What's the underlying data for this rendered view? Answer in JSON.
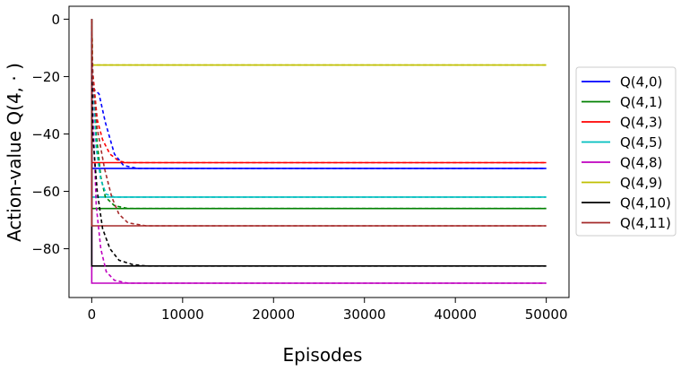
{
  "chart_data": {
    "type": "line",
    "title": "",
    "xlabel": "Episodes",
    "ylabel": "Action-value Q(4, · )",
    "xlim": [
      -2500,
      52500
    ],
    "ylim": [
      -97,
      4.5
    ],
    "xticks": [
      0,
      10000,
      20000,
      30000,
      40000,
      50000
    ],
    "xtick_labels": [
      "0",
      "10000",
      "20000",
      "30000",
      "40000",
      "50000"
    ],
    "yticks": [
      0,
      -20,
      -40,
      -60,
      -80
    ],
    "ytick_labels": [
      "0",
      "−20",
      "−40",
      "−60",
      "−80"
    ],
    "grid": false,
    "legend_position": "outside-right",
    "series": [
      {
        "name": "Q(4,0)",
        "color": "#0000ff",
        "solid_value": -52,
        "dashed": [
          [
            0,
            0
          ],
          [
            100,
            -24
          ],
          [
            800,
            -26
          ],
          [
            1500,
            -36
          ],
          [
            2500,
            -47
          ],
          [
            3500,
            -51
          ],
          [
            5000,
            -52
          ],
          [
            50000,
            -52
          ]
        ]
      },
      {
        "name": "Q(4,1)",
        "color": "#008000",
        "solid_value": -66,
        "dashed": [
          [
            0,
            0
          ],
          [
            100,
            -18
          ],
          [
            500,
            -40
          ],
          [
            1000,
            -55
          ],
          [
            1500,
            -62
          ],
          [
            2500,
            -65
          ],
          [
            4000,
            -66
          ],
          [
            50000,
            -66
          ]
        ]
      },
      {
        "name": "Q(4,3)",
        "color": "#ff0000",
        "solid_value": -50,
        "dashed": [
          [
            0,
            0
          ],
          [
            100,
            -18
          ],
          [
            600,
            -35
          ],
          [
            1200,
            -42
          ],
          [
            2000,
            -47
          ],
          [
            3000,
            -49.5
          ],
          [
            4000,
            -50
          ],
          [
            50000,
            -50
          ]
        ]
      },
      {
        "name": "Q(4,5)",
        "color": "#00bfbf",
        "solid_value": -62,
        "dashed": [
          [
            0,
            0
          ],
          [
            100,
            -20
          ],
          [
            500,
            -45
          ],
          [
            1000,
            -56
          ],
          [
            1600,
            -61
          ],
          [
            2500,
            -62
          ],
          [
            50000,
            -62
          ]
        ]
      },
      {
        "name": "Q(4,8)",
        "color": "#bf00bf",
        "solid_value": -92,
        "dashed": [
          [
            0,
            0
          ],
          [
            100,
            -30
          ],
          [
            500,
            -65
          ],
          [
            1000,
            -80
          ],
          [
            1600,
            -88
          ],
          [
            2500,
            -91
          ],
          [
            4000,
            -92
          ],
          [
            50000,
            -92
          ]
        ]
      },
      {
        "name": "Q(4,9)",
        "color": "#bfbf00",
        "solid_value": -16,
        "dashed": [
          [
            0,
            0
          ],
          [
            100,
            -16
          ],
          [
            50000,
            -16
          ]
        ]
      },
      {
        "name": "Q(4,10)",
        "color": "#000000",
        "solid_value": -86,
        "dashed": [
          [
            0,
            0
          ],
          [
            100,
            -40
          ],
          [
            600,
            -60
          ],
          [
            1200,
            -73
          ],
          [
            2000,
            -80
          ],
          [
            3000,
            -84
          ],
          [
            4500,
            -85.5
          ],
          [
            6000,
            -86
          ],
          [
            50000,
            -86
          ]
        ]
      },
      {
        "name": "Q(4,11)",
        "color": "#a52a2a",
        "solid_value": -72,
        "dashed": [
          [
            0,
            0
          ],
          [
            100,
            -20
          ],
          [
            600,
            -38
          ],
          [
            1400,
            -52
          ],
          [
            2200,
            -62
          ],
          [
            3000,
            -68
          ],
          [
            4000,
            -71
          ],
          [
            6000,
            -72
          ],
          [
            50000,
            -72
          ]
        ]
      }
    ]
  }
}
